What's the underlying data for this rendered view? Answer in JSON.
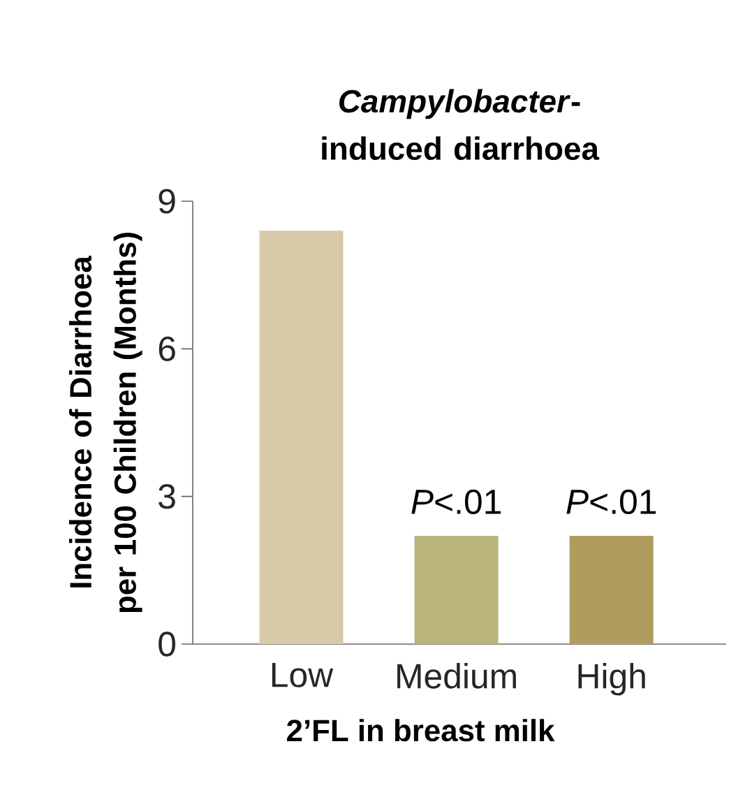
{
  "chart_data": {
    "type": "bar",
    "title": "*Campylobacter*-induced diarrhoea",
    "xlabel": "2’FL in breast milk",
    "ylabel": "Incidence of Diarrhoea per 100 Children (Months)",
    "categories": [
      "Low",
      "Medium",
      "High"
    ],
    "values": [
      8.4,
      2.2,
      2.2
    ],
    "colors": [
      "#d8c9a8",
      "#b8b47a",
      "#b09c5c"
    ],
    "ylim": [
      0,
      9
    ],
    "yticks": [
      0,
      3,
      6,
      9
    ],
    "annotations": [
      {
        "text": "*P*<.01",
        "x": "Medium",
        "y": 2.2
      },
      {
        "text": "*P*<.01",
        "x": "High",
        "y": 2.2
      }
    ]
  }
}
